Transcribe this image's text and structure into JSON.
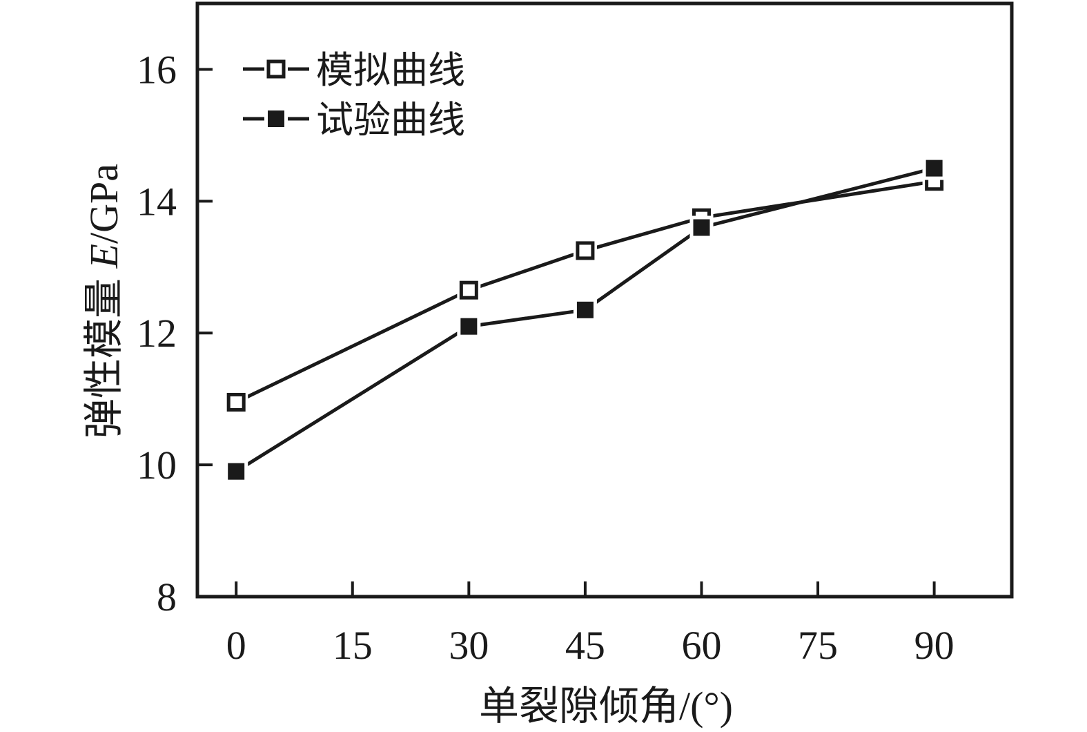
{
  "colors": {
    "ink": "#1a1a1a",
    "background": "#ffffff"
  },
  "chart_data": {
    "type": "line",
    "title": "",
    "xlabel": "单裂隙倾角/(°)",
    "ylabel": {
      "prefix": "弹性模量 ",
      "italic": "E",
      "suffix": "/GPa"
    },
    "x_ticks": [
      0,
      15,
      30,
      45,
      60,
      75,
      90
    ],
    "y_ticks": [
      8,
      10,
      12,
      14,
      16
    ],
    "xlim": [
      -5,
      100
    ],
    "ylim": [
      8,
      17
    ],
    "grid": false,
    "legend_position": "top-left",
    "x": [
      0,
      30,
      45,
      60,
      90
    ],
    "series": [
      {
        "name": "模拟曲线",
        "marker": "open-square",
        "values": [
          10.95,
          12.65,
          13.25,
          13.75,
          14.3
        ]
      },
      {
        "name": "试验曲线",
        "marker": "filled-square",
        "values": [
          9.9,
          12.1,
          12.35,
          13.6,
          14.5
        ]
      }
    ]
  }
}
